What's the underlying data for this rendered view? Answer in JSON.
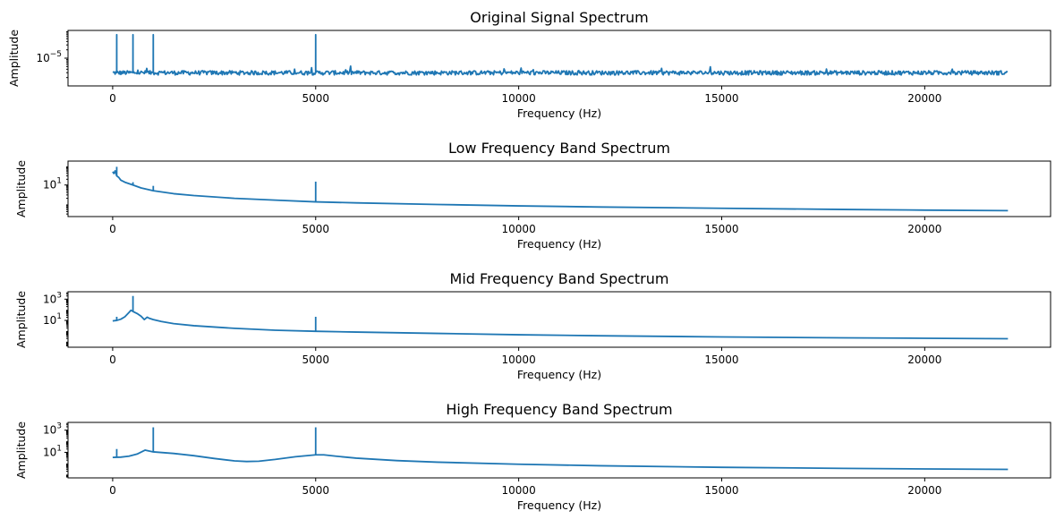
{
  "colors": {
    "series": "#1f77b4",
    "axes": "#000000",
    "background": "#ffffff"
  },
  "chart_data": [
    {
      "type": "line",
      "title": "Original Signal Spectrum",
      "xlabel": "Frequency (Hz)",
      "ylabel": "Amplitude",
      "yscale": "log",
      "xlim": [
        -1100,
        23100
      ],
      "ylim": [
        1e-06,
        0.0001
      ],
      "xticks": [
        0,
        5000,
        10000,
        15000,
        20000
      ],
      "xtick_labels": [
        "0",
        "5000",
        "10000",
        "15000",
        "20000"
      ],
      "yticks": [
        1e-05
      ],
      "ytick_labels": [
        "10^{-5}"
      ],
      "grid": false,
      "series": [
        {
          "baseline": 3e-06,
          "noise_floor": true,
          "points": [
            [
              0,
              3e-06
            ],
            [
              22050,
              3e-06
            ]
          ],
          "spikes": [
            [
              100,
              7e-05
            ],
            [
              500,
              7e-05
            ],
            [
              1000,
              7e-05
            ],
            [
              5000,
              7e-05
            ]
          ]
        }
      ]
    },
    {
      "type": "line",
      "title": "Low Frequency Band Spectrum",
      "xlabel": "Frequency (Hz)",
      "ylabel": "Amplitude",
      "yscale": "log",
      "xlim": [
        -1100,
        23100
      ],
      "ylim": [
        0.22,
        180
      ],
      "xticks": [
        0,
        5000,
        10000,
        15000,
        20000
      ],
      "xtick_labels": [
        "0",
        "5000",
        "10000",
        "15000",
        "20000"
      ],
      "yticks": [
        10
      ],
      "ytick_labels": [
        "10^{1}"
      ],
      "grid": false,
      "series": [
        {
          "points": [
            [
              0,
              50
            ],
            [
              30,
              40
            ],
            [
              60,
              55
            ],
            [
              100,
              30
            ],
            [
              150,
              25
            ],
            [
              200,
              18
            ],
            [
              300,
              14
            ],
            [
              500,
              10
            ],
            [
              700,
              7
            ],
            [
              1000,
              5
            ],
            [
              1500,
              3.5
            ],
            [
              2000,
              2.8
            ],
            [
              3000,
              2.0
            ],
            [
              4000,
              1.6
            ],
            [
              5000,
              1.3
            ],
            [
              6000,
              1.15
            ],
            [
              8000,
              0.95
            ],
            [
              10000,
              0.8
            ],
            [
              12000,
              0.7
            ],
            [
              15000,
              0.6
            ],
            [
              18000,
              0.52
            ],
            [
              20000,
              0.48
            ],
            [
              22050,
              0.45
            ]
          ],
          "spikes": [
            [
              100,
              90
            ],
            [
              500,
              14
            ],
            [
              1000,
              9
            ],
            [
              5000,
              15
            ]
          ]
        }
      ]
    },
    {
      "type": "line",
      "title": "Mid Frequency Band Spectrum",
      "xlabel": "Frequency (Hz)",
      "ylabel": "Amplitude",
      "yscale": "log",
      "xlim": [
        -1100,
        23100
      ],
      "ylim": [
        0.03,
        5000
      ],
      "xticks": [
        0,
        5000,
        10000,
        15000,
        20000
      ],
      "xtick_labels": [
        "0",
        "5000",
        "10000",
        "15000",
        "20000"
      ],
      "yticks": [
        10,
        1000
      ],
      "ytick_labels": [
        "10^{1}",
        "10^{3}"
      ],
      "grid": false,
      "series": [
        {
          "points": [
            [
              0,
              9
            ],
            [
              100,
              10
            ],
            [
              200,
              13
            ],
            [
              300,
              22
            ],
            [
              400,
              55
            ],
            [
              450,
              90
            ],
            [
              500,
              70
            ],
            [
              600,
              45
            ],
            [
              700,
              25
            ],
            [
              780,
              12
            ],
            [
              850,
              20
            ],
            [
              900,
              16
            ],
            [
              1000,
              12
            ],
            [
              1200,
              8
            ],
            [
              1500,
              5
            ],
            [
              2000,
              3.2
            ],
            [
              3000,
              1.8
            ],
            [
              4000,
              1.2
            ],
            [
              5000,
              0.95
            ],
            [
              6000,
              0.8
            ],
            [
              8000,
              0.6
            ],
            [
              10000,
              0.45
            ],
            [
              12000,
              0.36
            ],
            [
              15000,
              0.28
            ],
            [
              18000,
              0.23
            ],
            [
              20000,
              0.21
            ],
            [
              22050,
              0.19
            ]
          ],
          "spikes": [
            [
              100,
              22
            ],
            [
              500,
              2000
            ],
            [
              5000,
              22
            ]
          ]
        }
      ]
    },
    {
      "type": "line",
      "title": "High Frequency Band Spectrum",
      "xlabel": "Frequency (Hz)",
      "ylabel": "Amplitude",
      "yscale": "log",
      "xlim": [
        -1100,
        23100
      ],
      "ylim": [
        0.05,
        5000
      ],
      "xticks": [
        0,
        5000,
        10000,
        15000,
        20000
      ],
      "xtick_labels": [
        "0",
        "5000",
        "10000",
        "15000",
        "20000"
      ],
      "yticks": [
        10,
        1000
      ],
      "ytick_labels": [
        "10^{1}",
        "10^{3}"
      ],
      "grid": false,
      "series": [
        {
          "points": [
            [
              0,
              3.5
            ],
            [
              200,
              3.7
            ],
            [
              400,
              4.5
            ],
            [
              600,
              7
            ],
            [
              750,
              13
            ],
            [
              800,
              16
            ],
            [
              900,
              13
            ],
            [
              1000,
              11
            ],
            [
              1500,
              8
            ],
            [
              2000,
              5
            ],
            [
              2500,
              2.8
            ],
            [
              3000,
              1.7
            ],
            [
              3300,
              1.5
            ],
            [
              3600,
              1.6
            ],
            [
              4000,
              2.3
            ],
            [
              4500,
              4
            ],
            [
              5000,
              6
            ],
            [
              5200,
              6
            ],
            [
              5500,
              4.5
            ],
            [
              6000,
              3
            ],
            [
              7000,
              1.8
            ],
            [
              8000,
              1.3
            ],
            [
              10000,
              0.85
            ],
            [
              12000,
              0.62
            ],
            [
              15000,
              0.45
            ],
            [
              18000,
              0.36
            ],
            [
              20000,
              0.32
            ],
            [
              22050,
              0.29
            ]
          ],
          "spikes": [
            [
              100,
              20
            ],
            [
              500,
              6
            ],
            [
              1000,
              1800
            ],
            [
              5000,
              1800
            ]
          ]
        }
      ]
    }
  ]
}
